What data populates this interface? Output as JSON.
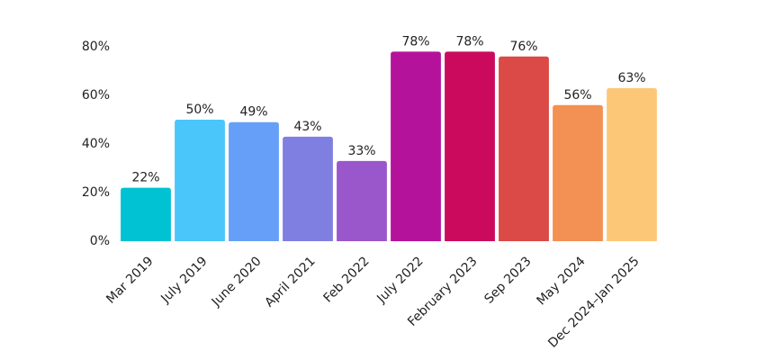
{
  "chart_data": {
    "type": "bar",
    "categories": [
      "Mar 2019",
      "July 2019",
      "June 2020",
      "April 2021",
      "Feb 2022",
      "July 2022",
      "February 2023",
      "Sep 2023",
      "May 2024",
      "Dec 2024–Jan 2025"
    ],
    "values": [
      22,
      50,
      49,
      43,
      33,
      78,
      78,
      76,
      56,
      63
    ],
    "value_labels": [
      "22%",
      "50%",
      "49%",
      "43%",
      "33%",
      "78%",
      "78%",
      "76%",
      "56%",
      "63%"
    ],
    "colors": [
      "#00c2d3",
      "#4ac6fa",
      "#669ff7",
      "#7f7fe2",
      "#9a56cb",
      "#b5129b",
      "#cb0a5e",
      "#db4a47",
      "#f39053",
      "#fcc878"
    ],
    "ylim": [
      0,
      80
    ],
    "yticks": [
      {
        "value": 0,
        "label": "0%"
      },
      {
        "value": 20,
        "label": "20%"
      },
      {
        "value": 40,
        "label": "40%"
      },
      {
        "value": 60,
        "label": "60%"
      },
      {
        "value": 80,
        "label": "80%"
      }
    ],
    "grid": false
  }
}
